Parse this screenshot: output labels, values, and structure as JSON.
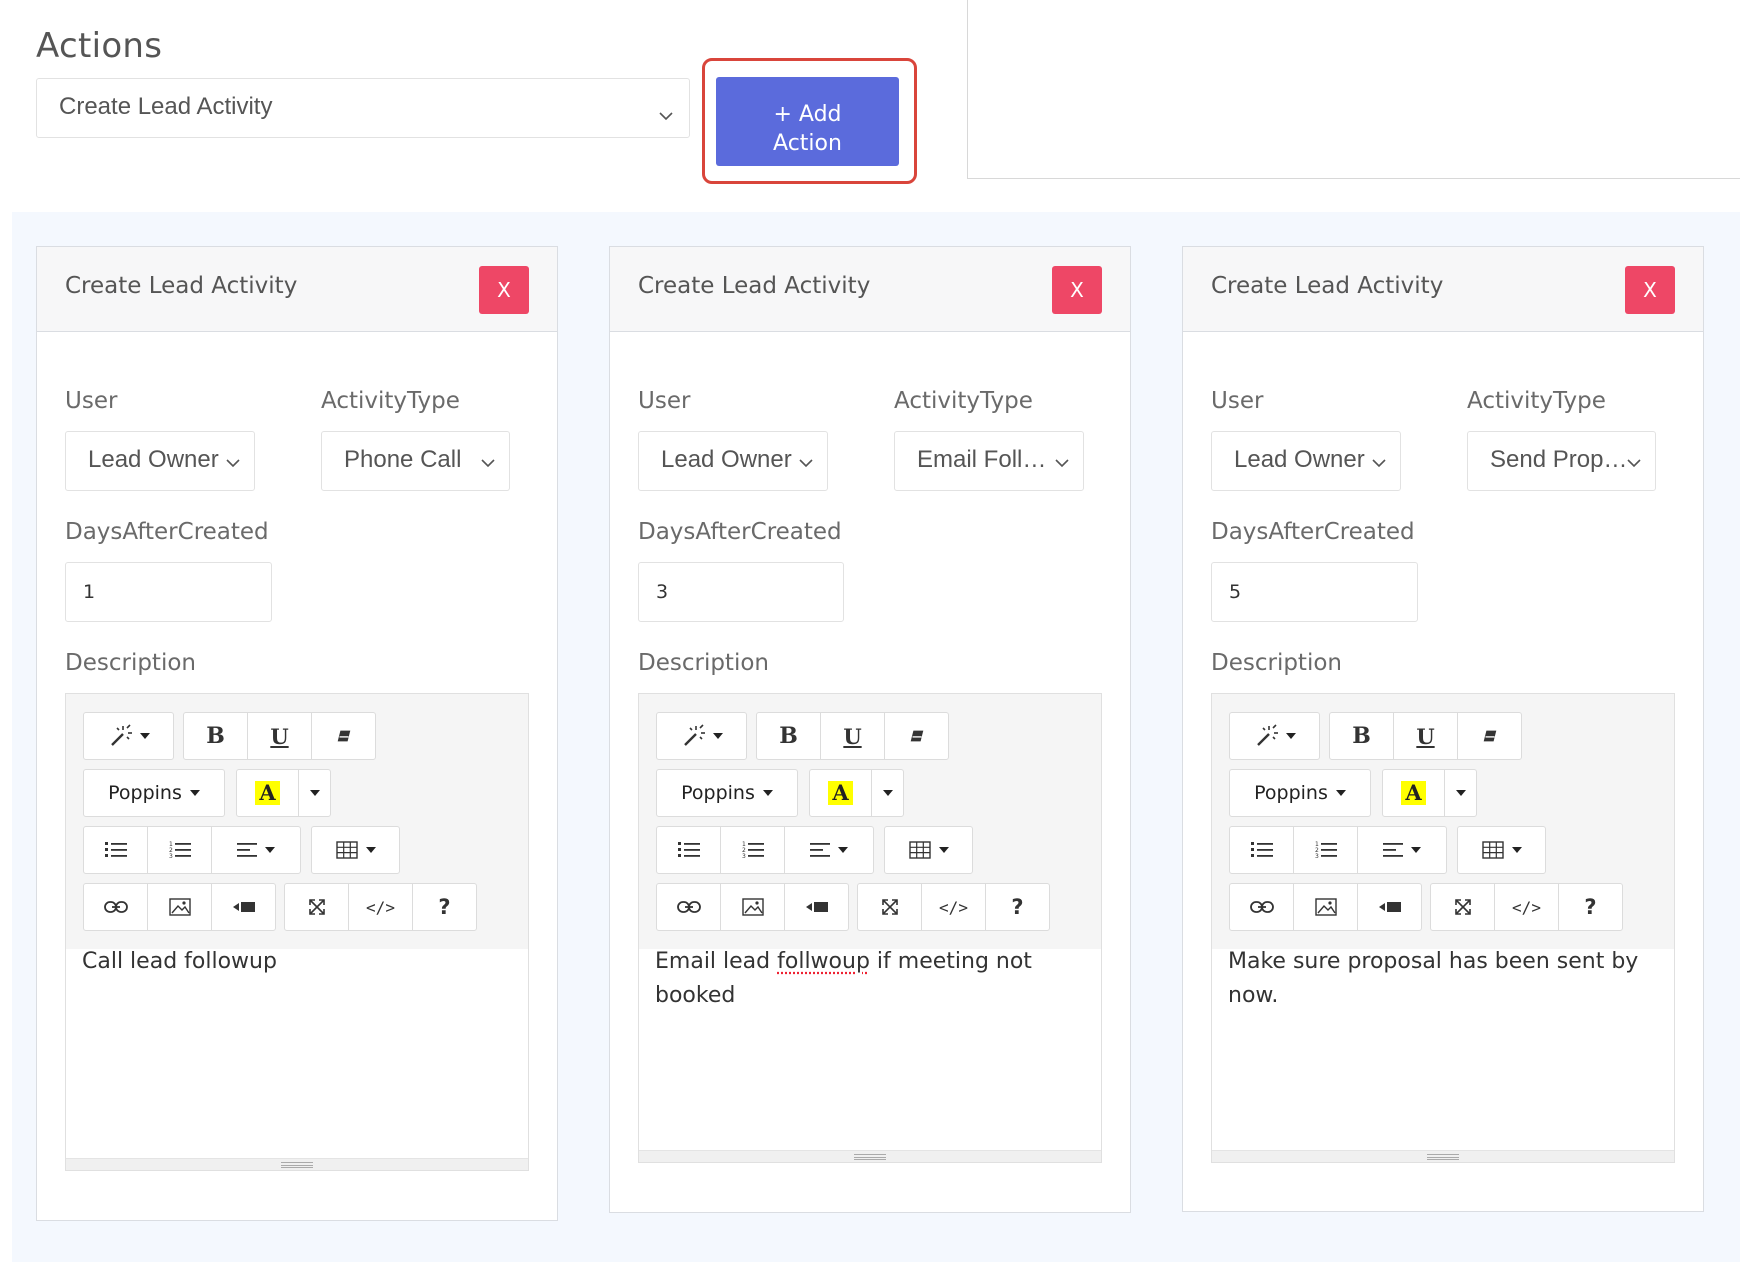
{
  "actions": {
    "title": "Actions",
    "selected_action": "Create Lead Activity",
    "add_button_line1": "+ Add",
    "add_button_line2": "Action"
  },
  "labels": {
    "user": "User",
    "activity_type": "ActivityType",
    "days_after_created": "DaysAfterCreated",
    "description": "Description"
  },
  "editor_toolbar": {
    "font_name": "Poppins",
    "bold": "B",
    "underline": "U",
    "highlight": "A",
    "code": "</>",
    "help": "?"
  },
  "cards": [
    {
      "title": "Create Lead Activity",
      "close_label": "X",
      "user": "Lead Owner",
      "activity_type": "Phone Call",
      "days_after_created": "1",
      "description": "Call lead followup"
    },
    {
      "title": "Create Lead Activity",
      "close_label": "X",
      "user": "Lead Owner",
      "activity_type": "Email Foll…",
      "days_after_created": "3",
      "description_before": "Email lead ",
      "description_misspelled": "follwoup",
      "description_after": " if meeting not booked"
    },
    {
      "title": "Create Lead Activity",
      "close_label": "X",
      "user": "Lead Owner",
      "activity_type": "Send Prop…",
      "days_after_created": "5",
      "description": "Make sure proposal has been sent by now."
    }
  ],
  "colors": {
    "add_button_bg": "#5b6bdc",
    "close_button_bg": "#ee4766",
    "highlight_border": "#d9453b",
    "card_area_bg": "#f4f8fe"
  }
}
